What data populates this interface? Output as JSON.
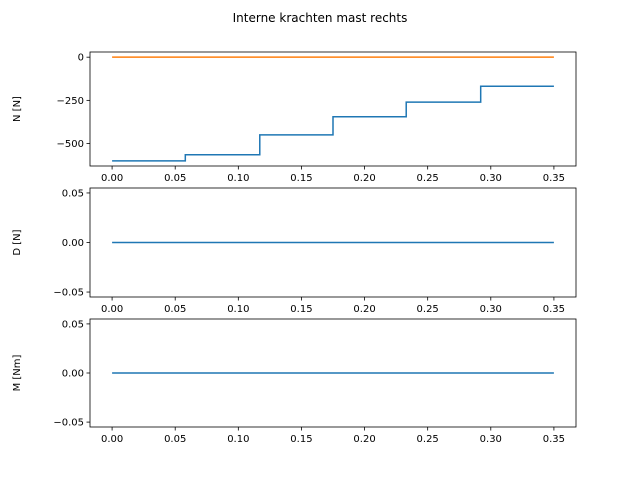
{
  "figure": {
    "suptitle": "Interne krachten mast rechts"
  },
  "colors": {
    "series1": "#1f77b4",
    "series2": "#ff7f0e",
    "axes": "#000000",
    "background": "#ffffff"
  },
  "chart_data": [
    {
      "type": "line",
      "ylabel": "N [N]",
      "xlim": [
        -0.0175,
        0.3675
      ],
      "ylim": [
        -630,
        30
      ],
      "xticks": [
        0.0,
        0.05,
        0.1,
        0.15,
        0.2,
        0.25,
        0.3,
        0.35
      ],
      "xtick_labels": [
        "0.00",
        "0.05",
        "0.10",
        "0.15",
        "0.20",
        "0.25",
        "0.30",
        "0.35"
      ],
      "yticks": [
        0,
        -250,
        -500
      ],
      "ytick_labels": [
        "0",
        "−250",
        "−500"
      ],
      "grid": false,
      "series": [
        {
          "x": [
            0.0,
            0.058,
            0.058,
            0.117,
            0.117,
            0.175,
            0.175,
            0.233,
            0.233,
            0.292,
            0.292,
            0.35
          ],
          "y": [
            -600,
            -600,
            -565,
            -565,
            -450,
            -450,
            -345,
            -345,
            -260,
            -260,
            -168,
            -168
          ]
        },
        {
          "x": [
            0.0,
            0.35
          ],
          "y": [
            0,
            0
          ]
        }
      ]
    },
    {
      "type": "line",
      "ylabel": "D [N]",
      "xlim": [
        -0.0175,
        0.3675
      ],
      "ylim": [
        -0.055,
        0.055
      ],
      "xticks": [
        0.0,
        0.05,
        0.1,
        0.15,
        0.2,
        0.25,
        0.3,
        0.35
      ],
      "xtick_labels": [
        "0.00",
        "0.05",
        "0.10",
        "0.15",
        "0.20",
        "0.25",
        "0.30",
        "0.35"
      ],
      "yticks": [
        0.05,
        0.0,
        -0.05
      ],
      "ytick_labels": [
        "0.05",
        "0.00",
        "−0.05"
      ],
      "grid": false,
      "series": [
        {
          "x": [
            0.0,
            0.35
          ],
          "y": [
            0,
            0
          ]
        }
      ]
    },
    {
      "type": "line",
      "ylabel": "M [Nm]",
      "xlim": [
        -0.0175,
        0.3675
      ],
      "ylim": [
        -0.055,
        0.055
      ],
      "xticks": [
        0.0,
        0.05,
        0.1,
        0.15,
        0.2,
        0.25,
        0.3,
        0.35
      ],
      "xtick_labels": [
        "0.00",
        "0.05",
        "0.10",
        "0.15",
        "0.20",
        "0.25",
        "0.30",
        "0.35"
      ],
      "yticks": [
        0.05,
        0.0,
        -0.05
      ],
      "ytick_labels": [
        "0.05",
        "0.00",
        "−0.05"
      ],
      "grid": false,
      "series": [
        {
          "x": [
            0.0,
            0.35
          ],
          "y": [
            0,
            0
          ]
        }
      ]
    }
  ]
}
